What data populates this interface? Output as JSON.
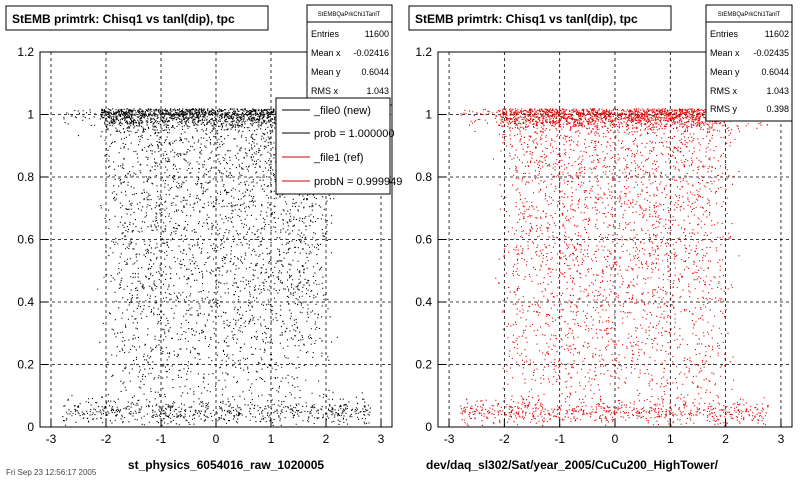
{
  "footer_text": "Fri Sep 23 12:56:17 2005",
  "chart_data": [
    {
      "type": "scatter",
      "title": "StEMB primtrk: Chisq1 vs tanl(dip), tpc",
      "xlabel": "st_physics_6054016_raw_1020005",
      "ylabel": "",
      "xlim": [
        -3.2,
        3.2
      ],
      "ylim": [
        0,
        1.2
      ],
      "xticks": [
        -3,
        -2,
        -1,
        0,
        1,
        2,
        3
      ],
      "yticks": [
        0,
        0.2,
        0.4,
        0.6,
        0.8,
        1,
        1.2
      ],
      "ytick_labels": [
        "0",
        "0.2",
        "0.4",
        "0.6",
        "0.8",
        "1",
        "1.2"
      ],
      "grid": true,
      "marker_color": "#000000",
      "distribution": {
        "x_range": [
          -2.8,
          2.8
        ],
        "x_core": [
          -2.1,
          2.1
        ],
        "bands": [
          {
            "y": 1.0,
            "spread": 0.022,
            "weight": 0.33
          },
          {
            "y": 0.05,
            "spread": 0.02,
            "weight": 0.13
          }
        ],
        "background_weight": 0.54
      },
      "stats": {
        "name": "StEMBQaPrkChi1TanlT",
        "rows": [
          {
            "label": "Entries",
            "value": "11600"
          },
          {
            "label": "Mean x",
            "value": "-0.02416"
          },
          {
            "label": "Mean y",
            "value": "0.6044"
          },
          {
            "label": "RMS x",
            "value": "1.043"
          }
        ]
      },
      "legend": {
        "placement": "top-right",
        "entries": [
          {
            "label": "_file0 (new)",
            "color": "#000000"
          },
          {
            "label": "prob = 1.000000",
            "color": "#000000"
          },
          {
            "label": "_file1 (ref)",
            "color": "#cc0000"
          },
          {
            "label": "probN = 0.999949",
            "color": "#cc0000"
          }
        ]
      }
    },
    {
      "type": "scatter",
      "title": "StEMB primtrk: Chisq1 vs tanl(dip), tpc",
      "xlabel": "dev/daq_sl302/Sat/year_2005/CuCu200_HighTower/",
      "ylabel": "",
      "xlim": [
        -3.2,
        3.2
      ],
      "ylim": [
        0,
        1.2
      ],
      "xticks": [
        -3,
        -2,
        -1,
        0,
        1,
        2,
        3
      ],
      "yticks": [
        0,
        0.2,
        0.4,
        0.6,
        0.8,
        1,
        1.2
      ],
      "ytick_labels": [
        "0",
        "0.2",
        "0.4",
        "0.6",
        "0.8",
        "1",
        "1.2"
      ],
      "grid": true,
      "marker_color": "#e00000",
      "distribution": {
        "x_range": [
          -2.8,
          2.8
        ],
        "x_core": [
          -2.1,
          2.1
        ],
        "bands": [
          {
            "y": 1.0,
            "spread": 0.022,
            "weight": 0.33
          },
          {
            "y": 0.05,
            "spread": 0.02,
            "weight": 0.13
          }
        ],
        "background_weight": 0.54
      },
      "stats": {
        "name": "StEMBQaPrkChi1TanlT",
        "rows": [
          {
            "label": "Entries",
            "value": "11602"
          },
          {
            "label": "Mean x",
            "value": "-0.02435"
          },
          {
            "label": "Mean y",
            "value": "0.6044"
          },
          {
            "label": "RMS x",
            "value": "1.043"
          },
          {
            "label": "RMS y",
            "value": "0.398"
          }
        ]
      }
    }
  ]
}
